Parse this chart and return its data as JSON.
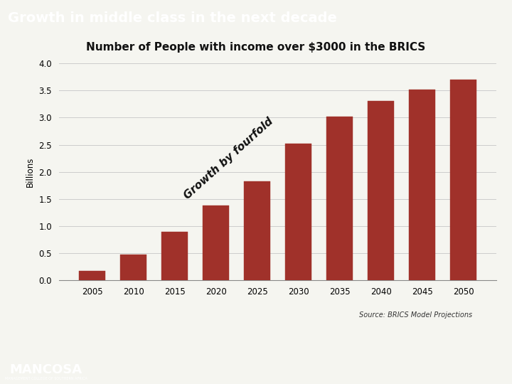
{
  "title_bar": "Growth in middle class in the next decade",
  "title_bar_bg": "#2d7a2d",
  "title_bar_color": "#ffffff",
  "subtitle": "Number of People with income over $3000 in the BRICS",
  "ylabel": "Billions",
  "categories": [
    2005,
    2010,
    2015,
    2020,
    2025,
    2030,
    2035,
    2040,
    2045,
    2050
  ],
  "values": [
    0.17,
    0.48,
    0.9,
    1.38,
    1.82,
    2.52,
    3.02,
    3.3,
    3.52,
    3.7
  ],
  "bar_color": "#a0312a",
  "ylim": [
    0,
    4
  ],
  "yticks": [
    0,
    0.5,
    1,
    1.5,
    2,
    2.5,
    3,
    3.5,
    4
  ],
  "source_text": "Source: BRICS Model Projections",
  "annotation_text": "Growth by fourfold",
  "annotation_rotation": 42,
  "bg_color": "#f5f5f0",
  "plot_bg_color": "#f5f5f0",
  "footer_bg": "#1e6b1e",
  "grid_color": "#cccccc",
  "title_fontsize": 14,
  "subtitle_fontsize": 11
}
